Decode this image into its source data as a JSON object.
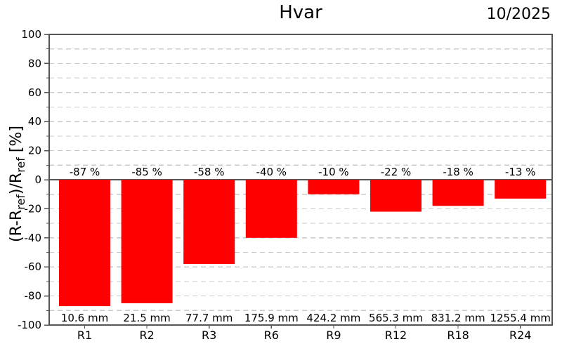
{
  "header": {
    "title": "Hvar",
    "period": "10/2025"
  },
  "chart_data": {
    "type": "bar",
    "title": "Hvar",
    "period": "10/2025",
    "categories": [
      "R1",
      "R2",
      "R3",
      "R6",
      "R9",
      "R12",
      "R18",
      "R24"
    ],
    "values": [
      -87,
      -85,
      -58,
      -40,
      -10,
      -22,
      -18,
      -13
    ],
    "bar_value_labels": [
      "-87 %",
      "-85 %",
      "-58 %",
      "-40 %",
      "-10 %",
      "-22 %",
      "-18 %",
      "-13 %"
    ],
    "reference_totals_mm": [
      10.6,
      21.5,
      77.7,
      175.9,
      424.2,
      565.3,
      831.2,
      1255.4
    ],
    "reference_total_labels": [
      "10.6 mm",
      "21.5 mm",
      "77.7 mm",
      "175.9 mm",
      "424.2 mm",
      "565.3 mm",
      "831.2 mm",
      "1255.4 mm"
    ],
    "xlabel": "",
    "ylabel": "(R-Rref)/Rref [%]",
    "ylabel_parts": [
      {
        "t": "(R-R",
        "sub": false
      },
      {
        "t": "ref",
        "sub": true
      },
      {
        "t": ")/R",
        "sub": false
      },
      {
        "t": "ref",
        "sub": true
      },
      {
        "t": " [%]",
        "sub": false
      }
    ],
    "ylim": [
      -100,
      100
    ],
    "ytick_step": 20,
    "grid_step": 10,
    "grid": "horizontal-dashed",
    "legend": "none",
    "colors": {
      "bar": "#ff0000",
      "axis": "#555555",
      "grid": "#c8c8c8",
      "text": "#000000"
    }
  }
}
